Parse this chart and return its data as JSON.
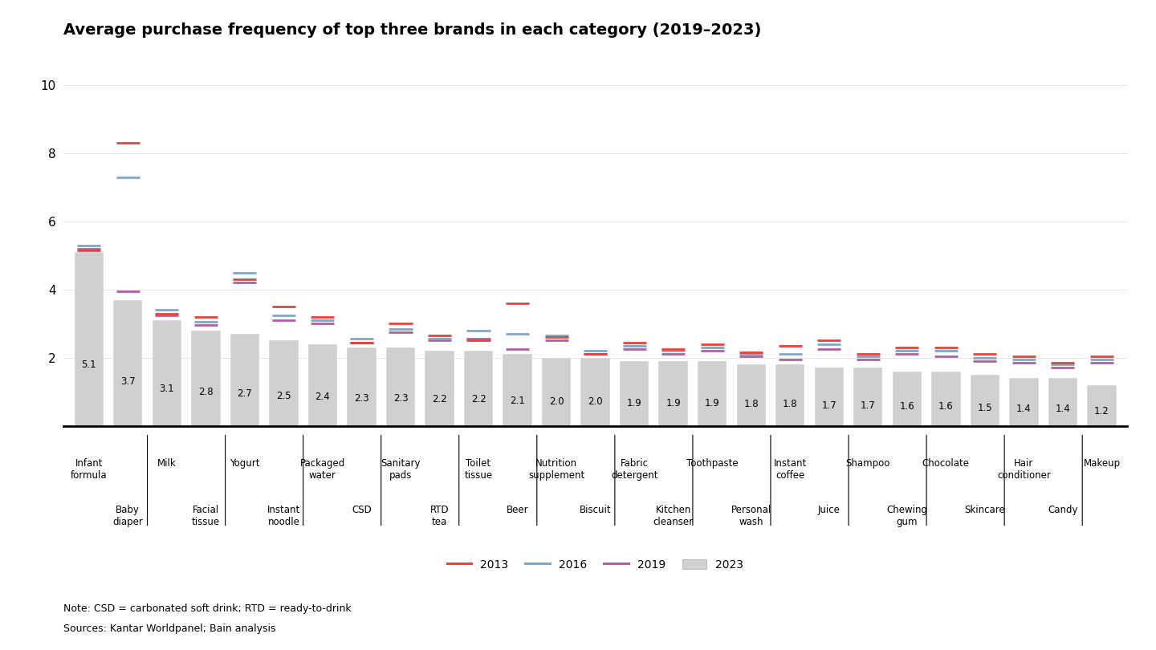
{
  "title": "Average purchase frequency of top three brands in each category (2019–2023)",
  "note": "Note: CSD = carbonated soft drink; RTD = ready-to-drink",
  "source": "Sources: Kantar Worldpanel; Bain analysis",
  "categories": [
    "Infant\nformula",
    "Baby\ndiaper",
    "Milk",
    "Facial\ntissue",
    "Yogurt",
    "Instant\nnoodle",
    "Packaged\nwater",
    "CSD",
    "Sanitary\npads",
    "RTD\ntea",
    "Toilet\ntissue",
    "Beer",
    "Nutrition\nsupplement",
    "Biscuit",
    "Fabric\ndetergent",
    "Kitchen\ncleanser",
    "Toothpaste",
    "Personal\nwash",
    "Instant\ncoffee",
    "Juice",
    "Shampoo",
    "Chewing\ngum",
    "Chocolate",
    "Skincare",
    "Hair\nconditioner",
    "Candy",
    "Makeup"
  ],
  "values_2023": [
    5.1,
    3.7,
    3.1,
    2.8,
    2.7,
    2.5,
    2.4,
    2.3,
    2.3,
    2.2,
    2.2,
    2.1,
    2.0,
    2.0,
    1.9,
    1.9,
    1.9,
    1.8,
    1.8,
    1.7,
    1.7,
    1.6,
    1.6,
    1.5,
    1.4,
    1.4,
    1.2
  ],
  "values_2013": [
    5.15,
    8.3,
    3.3,
    3.2,
    4.3,
    3.5,
    3.2,
    2.45,
    3.0,
    2.65,
    2.5,
    3.6,
    2.6,
    2.1,
    2.45,
    2.25,
    2.4,
    2.15,
    2.35,
    2.5,
    2.1,
    2.3,
    2.3,
    2.1,
    2.05,
    1.85,
    2.05
  ],
  "values_2016": [
    5.3,
    7.3,
    3.4,
    3.05,
    4.5,
    3.25,
    3.1,
    2.55,
    2.85,
    2.55,
    2.8,
    2.7,
    2.65,
    2.2,
    2.35,
    2.2,
    2.3,
    2.1,
    2.1,
    2.4,
    2.05,
    2.2,
    2.2,
    2.0,
    1.95,
    1.8,
    1.95
  ],
  "values_2019": [
    5.2,
    3.95,
    3.25,
    2.95,
    4.2,
    3.1,
    3.0,
    2.45,
    2.75,
    2.5,
    2.55,
    2.25,
    2.5,
    2.1,
    2.25,
    2.1,
    2.2,
    2.05,
    1.95,
    2.25,
    1.95,
    2.1,
    2.05,
    1.9,
    1.85,
    1.7,
    1.85
  ],
  "color_2013": "#e8433a",
  "color_2016": "#7ea8c9",
  "color_2019": "#b060a0",
  "bar_color": "#d0d0d0",
  "ylim": [
    0,
    10.5
  ],
  "yticks": [
    0,
    2,
    4,
    6,
    8,
    10
  ],
  "background_color": "#ffffff",
  "title_fontsize": 14,
  "label_fontsize": 8.5
}
